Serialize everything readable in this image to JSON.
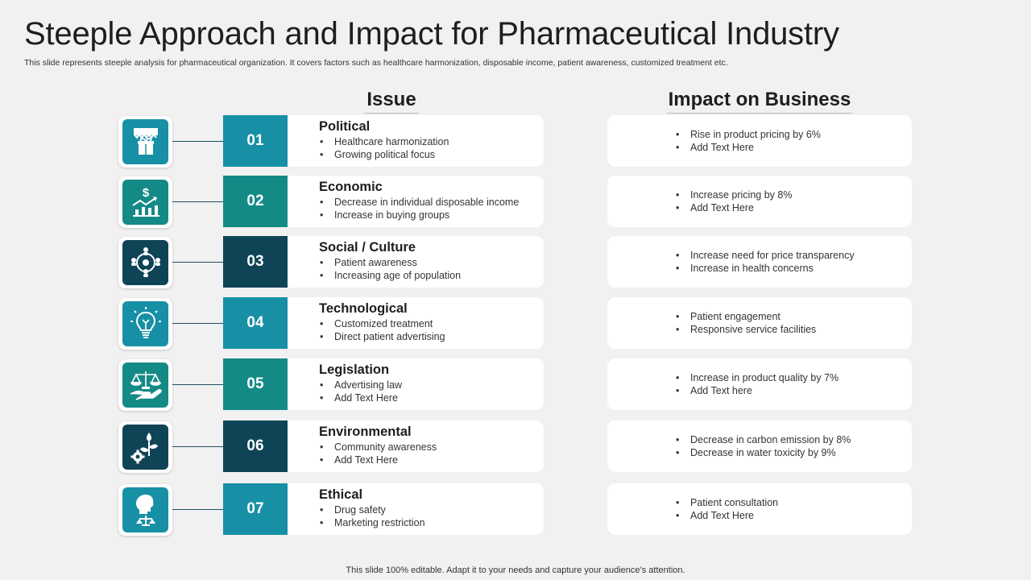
{
  "title": "Steeple Approach and Impact for Pharmaceutical Industry",
  "subtitle": "This slide represents steeple analysis for pharmaceutical organization. It covers factors such as healthcare harmonization, disposable income, patient awareness, customized treatment etc.",
  "headers": {
    "issue": "Issue",
    "impact": "Impact on Business"
  },
  "colors": {
    "teal_light": "#1790a6",
    "teal_mid": "#148a86",
    "navy": "#0f4457",
    "card": "#ffffff",
    "background": "#f1f1f1"
  },
  "rows": [
    {
      "number": "01",
      "icon": "gift-shop-icon",
      "title": "Political",
      "issues": [
        "Healthcare harmonization",
        "Growing political focus"
      ],
      "impacts": [
        "Rise in product pricing by 6%",
        "Add Text Here"
      ]
    },
    {
      "number": "02",
      "icon": "dollar-chart-icon",
      "title": "Economic",
      "issues": [
        "Decrease in individual  disposable income",
        "Increase in buying groups"
      ],
      "impacts": [
        "Increase pricing  by 8%",
        "Add Text Here"
      ]
    },
    {
      "number": "03",
      "icon": "people-network-icon",
      "title": "Social / Culture",
      "issues": [
        "Patient awareness",
        "Increasing age of population"
      ],
      "impacts": [
        "Increase need for price transparency",
        "Increase in health concerns"
      ]
    },
    {
      "number": "04",
      "icon": "lightbulb-circuit-icon",
      "title": "Technological",
      "issues": [
        "Customized treatment",
        "Direct patient advertising"
      ],
      "impacts": [
        "Patient engagement",
        "Responsive  service facilities"
      ]
    },
    {
      "number": "05",
      "icon": "scale-hand-icon",
      "title": "Legislation",
      "issues": [
        "Advertising law",
        "Add Text Here"
      ],
      "impacts": [
        "Increase in product quality by 7%",
        "Add Text here"
      ]
    },
    {
      "number": "06",
      "icon": "plant-gear-icon",
      "title": "Environmental",
      "issues": [
        "Community awareness",
        "Add Text Here"
      ],
      "impacts": [
        "Decrease in carbon emission by 8%",
        "Decrease in water toxicity by 9%"
      ]
    },
    {
      "number": "07",
      "icon": "ethics-head-icon",
      "title": "Ethical",
      "issues": [
        "Drug safety",
        "Marketing restriction"
      ],
      "impacts": [
        "Patient consultation",
        "Add Text Here"
      ]
    }
  ],
  "footer": "This slide 100% editable. Adapt it to your needs and capture your audience’s attention."
}
